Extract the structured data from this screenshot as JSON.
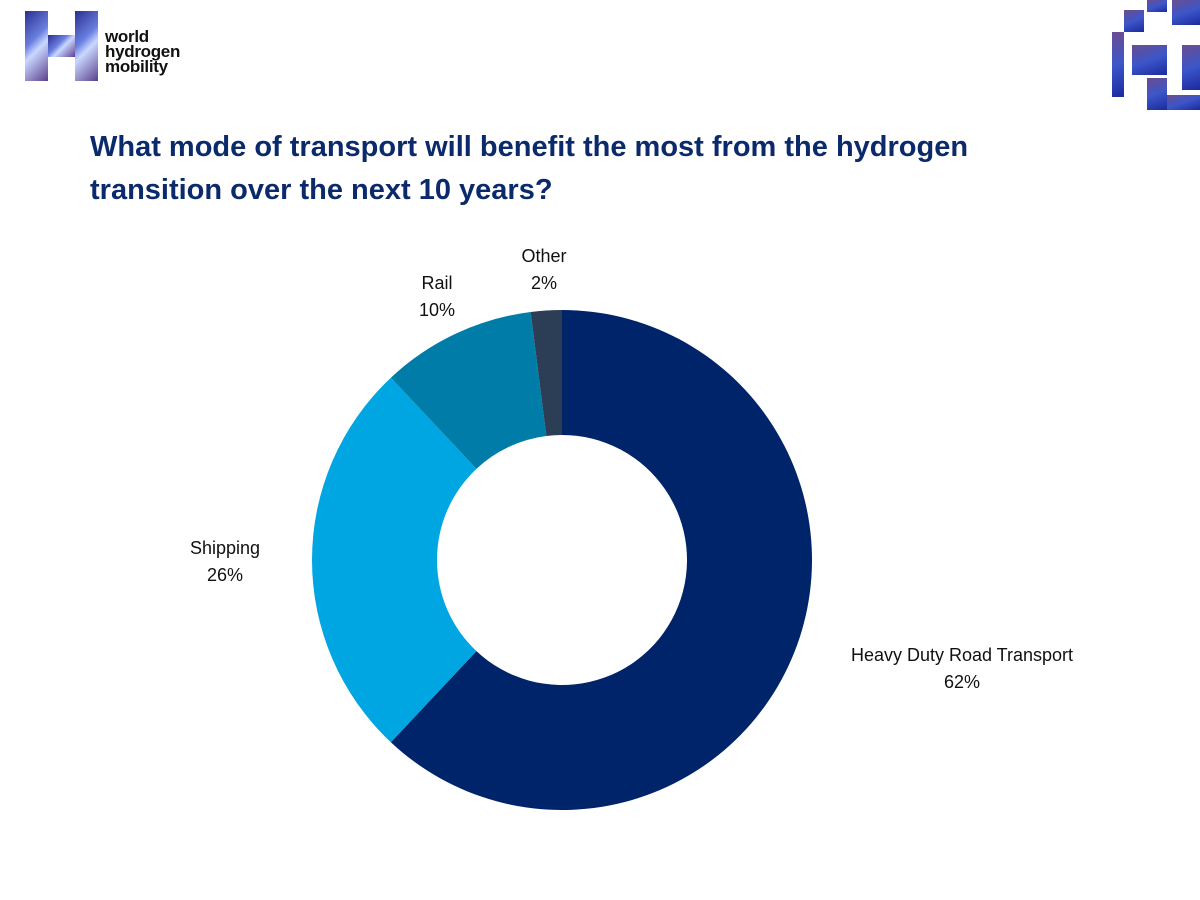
{
  "logo": {
    "text_lines": [
      "world",
      "hydrogen",
      "mobility"
    ]
  },
  "chart_data": {
    "type": "pie",
    "subtype": "donut",
    "title": "What mode of transport will benefit the most from the hydrogen transition over the next 10 years?",
    "categories": [
      "Heavy Duty Road Transport",
      "Shipping",
      "Rail",
      "Other"
    ],
    "values": [
      62,
      26,
      10,
      2
    ],
    "value_labels": [
      "62%",
      "26%",
      "10%",
      "2%"
    ],
    "colors": [
      "#002469",
      "#00a6e2",
      "#007ca8",
      "#2c3e55"
    ]
  }
}
